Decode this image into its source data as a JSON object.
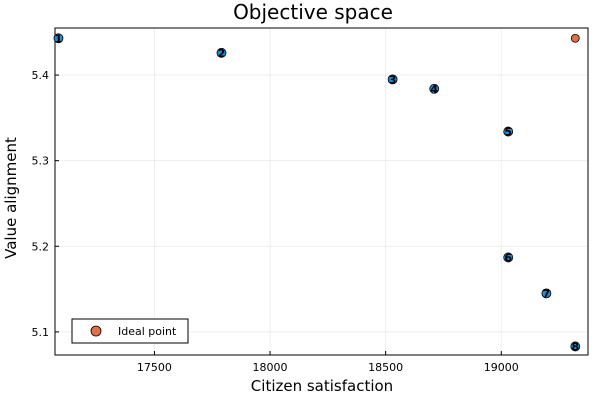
{
  "chart_data": {
    "type": "scatter",
    "title": "Objective space",
    "xlabel": "Citizen satisfaction",
    "ylabel": "Value alignment",
    "xlim": [
      17070,
      19375
    ],
    "ylim": [
      5.073,
      5.455
    ],
    "xticks": [
      17500,
      18000,
      18500,
      19000
    ],
    "yticks": [
      5.1,
      5.2,
      5.3,
      5.4
    ],
    "xtick_labels": [
      "17500",
      "18000",
      "18500",
      "19000"
    ],
    "ytick_labels": [
      "5.1",
      "5.2",
      "5.3",
      "5.4"
    ],
    "grid": true,
    "legend_position": "bottom-left",
    "series": [
      {
        "color": "#1f8ad4",
        "points": [
          {
            "x": 17085,
            "y": 5.443,
            "label": "1"
          },
          {
            "x": 17790,
            "y": 5.426,
            "label": "2"
          },
          {
            "x": 18530,
            "y": 5.395,
            "label": "3"
          },
          {
            "x": 18710,
            "y": 5.384,
            "label": "4"
          },
          {
            "x": 19030,
            "y": 5.334,
            "label": "5"
          },
          {
            "x": 19030,
            "y": 5.187,
            "label": "6"
          },
          {
            "x": 19195,
            "y": 5.145,
            "label": "7"
          },
          {
            "x": 19320,
            "y": 5.083,
            "label": "8"
          }
        ]
      },
      {
        "name": "Ideal point",
        "color": "#e26f46",
        "points": [
          {
            "x": 19320,
            "y": 5.443
          }
        ]
      }
    ]
  }
}
